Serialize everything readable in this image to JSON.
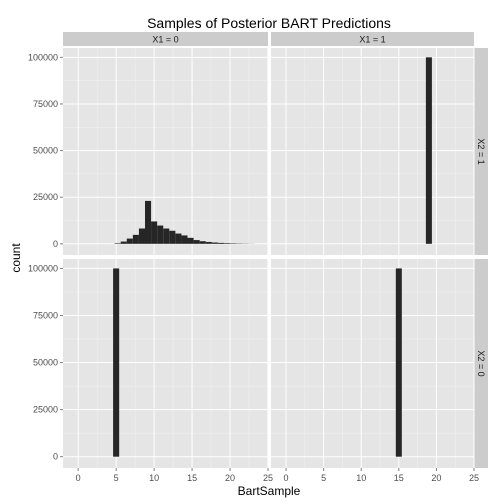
{
  "chart_data": {
    "type": "bar",
    "title": "Samples of Posterior BART Predictions",
    "xlabel": "BartSample",
    "ylabel": "count",
    "xlim": [
      -2,
      25
    ],
    "ylim": [
      -6000,
      105000
    ],
    "xticks": [
      0,
      5,
      10,
      15,
      20,
      25
    ],
    "yticks": [
      0,
      25000,
      50000,
      75000,
      100000
    ],
    "ytick_labels": [
      "0",
      "25000",
      "50000",
      "75000",
      "100000"
    ],
    "grid": true,
    "bar_color": "#262626",
    "panel_background": "#e5e5e5",
    "strip_background": "#cccccc",
    "bin_width": 0.8,
    "col_strips": [
      "X1 = 0",
      "X1 = 1"
    ],
    "row_strips": [
      "X2 = 1",
      "X2 = 0"
    ],
    "panels": [
      {
        "row": 0,
        "col": 0,
        "bars": [
          {
            "x": 5.2,
            "count": 300
          },
          {
            "x": 6.0,
            "count": 1200
          },
          {
            "x": 6.8,
            "count": 2800
          },
          {
            "x": 7.6,
            "count": 4800
          },
          {
            "x": 8.4,
            "count": 8200
          },
          {
            "x": 9.2,
            "count": 23000
          },
          {
            "x": 10.0,
            "count": 12000
          },
          {
            "x": 10.8,
            "count": 9800
          },
          {
            "x": 11.6,
            "count": 8200
          },
          {
            "x": 12.4,
            "count": 7000
          },
          {
            "x": 13.2,
            "count": 5500
          },
          {
            "x": 14.0,
            "count": 4500
          },
          {
            "x": 14.8,
            "count": 3200
          },
          {
            "x": 15.6,
            "count": 2000
          },
          {
            "x": 16.4,
            "count": 1400
          },
          {
            "x": 17.2,
            "count": 1000
          },
          {
            "x": 18.0,
            "count": 700
          },
          {
            "x": 18.8,
            "count": 500
          },
          {
            "x": 19.6,
            "count": 350
          },
          {
            "x": 20.4,
            "count": 250
          },
          {
            "x": 21.2,
            "count": 170
          },
          {
            "x": 22.0,
            "count": 110
          },
          {
            "x": 22.8,
            "count": 60
          }
        ]
      },
      {
        "row": 0,
        "col": 1,
        "bars": [
          {
            "x": 19.0,
            "count": 100000
          }
        ]
      },
      {
        "row": 1,
        "col": 0,
        "bars": [
          {
            "x": 5.0,
            "count": 100000
          }
        ]
      },
      {
        "row": 1,
        "col": 1,
        "bars": [
          {
            "x": 15.0,
            "count": 100000
          }
        ]
      }
    ]
  }
}
